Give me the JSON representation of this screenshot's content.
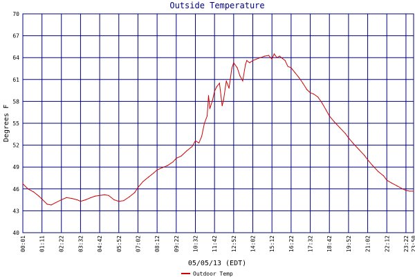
{
  "chart_data": {
    "type": "line",
    "title": "Outside Temperature",
    "ylabel": "Degrees F",
    "xlabel": "05/05/13 (EDT)",
    "ylim": [
      40,
      70
    ],
    "yticks": [
      40,
      43,
      46,
      49,
      52,
      55,
      58,
      61,
      64,
      67,
      70
    ],
    "xticks": [
      "00:01",
      "01:11",
      "02:22",
      "03:32",
      "04:42",
      "05:52",
      "07:02",
      "08:12",
      "09:22",
      "10:32",
      "11:42",
      "12:52",
      "14:02",
      "15:12",
      "16:22",
      "17:32",
      "18:42",
      "19:52",
      "21:02",
      "22:12",
      "23:22",
      "23:50"
    ],
    "grid": true,
    "legend_position": "bottom-left",
    "series": [
      {
        "name": "Outdoor Temp",
        "color": "#cc0000",
        "x": [
          "00:01",
          "00:20",
          "00:40",
          "01:00",
          "01:11",
          "01:30",
          "01:45",
          "02:00",
          "02:22",
          "02:40",
          "03:00",
          "03:20",
          "03:32",
          "03:50",
          "04:10",
          "04:25",
          "04:42",
          "05:00",
          "05:15",
          "05:35",
          "05:52",
          "06:10",
          "06:30",
          "06:50",
          "07:02",
          "07:20",
          "07:40",
          "08:00",
          "08:12",
          "08:30",
          "08:50",
          "09:10",
          "09:22",
          "09:40",
          "10:00",
          "10:20",
          "10:32",
          "10:45",
          "10:55",
          "11:05",
          "11:15",
          "11:20",
          "11:25",
          "11:35",
          "11:42",
          "11:50",
          "12:00",
          "12:10",
          "12:15",
          "12:25",
          "12:35",
          "12:45",
          "12:52",
          "13:05",
          "13:15",
          "13:25",
          "13:35",
          "13:40",
          "13:50",
          "14:02",
          "14:15",
          "14:30",
          "14:45",
          "15:00",
          "15:12",
          "15:20",
          "15:30",
          "15:40",
          "15:50",
          "16:00",
          "16:10",
          "16:22",
          "16:35",
          "16:50",
          "17:05",
          "17:20",
          "17:32",
          "17:45",
          "18:00",
          "18:15",
          "18:30",
          "18:42",
          "19:00",
          "19:20",
          "19:40",
          "19:52",
          "20:10",
          "20:30",
          "20:50",
          "21:02",
          "21:20",
          "21:40",
          "22:00",
          "22:12",
          "22:30",
          "22:50",
          "23:10",
          "23:22",
          "23:35",
          "23:50"
        ],
        "values": [
          46.7,
          46.0,
          45.6,
          45.0,
          44.6,
          43.9,
          43.8,
          44.1,
          44.5,
          44.8,
          44.7,
          44.5,
          44.3,
          44.5,
          44.8,
          45.0,
          45.1,
          45.2,
          45.1,
          44.5,
          44.3,
          44.4,
          44.9,
          45.5,
          46.2,
          47.0,
          47.6,
          48.2,
          48.6,
          48.9,
          49.2,
          49.7,
          50.2,
          50.5,
          51.2,
          51.8,
          52.6,
          52.3,
          53.2,
          55.0,
          56.0,
          58.8,
          57.0,
          58.2,
          59.4,
          60.0,
          60.5,
          57.4,
          58.2,
          60.8,
          59.8,
          62.5,
          63.3,
          62.6,
          61.5,
          60.8,
          63.0,
          63.6,
          63.3,
          63.6,
          63.8,
          64.0,
          64.2,
          64.3,
          63.8,
          64.5,
          64.0,
          64.2,
          63.9,
          63.6,
          62.8,
          62.6,
          62.0,
          61.3,
          60.5,
          59.6,
          59.2,
          59.0,
          58.6,
          57.8,
          56.8,
          56.0,
          55.2,
          54.4,
          53.6,
          53.0,
          52.2,
          51.4,
          50.6,
          50.0,
          49.2,
          48.4,
          47.8,
          47.2,
          46.8,
          46.4,
          46.0,
          45.8,
          45.7,
          45.7
        ]
      }
    ]
  }
}
